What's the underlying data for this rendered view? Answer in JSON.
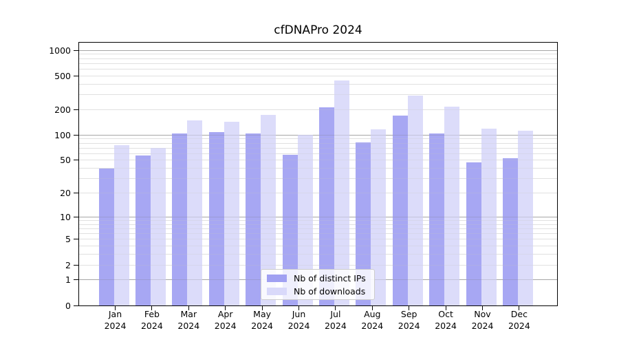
{
  "title": "cfDNAPro 2024",
  "chart_data": {
    "type": "bar",
    "title": "cfDNAPro 2024",
    "categories": [
      "Jan 2024",
      "Feb 2024",
      "Mar 2024",
      "Apr 2024",
      "May 2024",
      "Jun 2024",
      "Jul 2024",
      "Aug 2024",
      "Sep 2024",
      "Oct 2024",
      "Nov 2024",
      "Dec 2024"
    ],
    "series": [
      {
        "name": "Nb of distinct IPs",
        "color": "#a0a0f2",
        "values": [
          40,
          57,
          105,
          108,
          105,
          58,
          212,
          82,
          170,
          105,
          47,
          53
        ]
      },
      {
        "name": "Nb of downloads",
        "color": "#d9d9fa",
        "values": [
          76,
          70,
          148,
          145,
          172,
          100,
          440,
          118,
          295,
          218,
          119,
          112
        ]
      }
    ],
    "xlabel": "",
    "ylabel": "",
    "yscale": "log1p",
    "yticks": [
      0,
      1,
      2,
      5,
      10,
      20,
      50,
      100,
      200,
      500,
      1000
    ],
    "ylim": [
      0,
      1230
    ],
    "grid": true,
    "major_gridlines": [
      1,
      10,
      100,
      1000
    ],
    "legend_position": "lower center",
    "colors": {
      "major_grid": "#b0b0b0",
      "minor_grid": "#e8e8e8",
      "axis": "#000000",
      "legend_border": "#cccccc"
    }
  },
  "legend": {
    "items": [
      {
        "label": "Nb of distinct IPs"
      },
      {
        "label": "Nb of downloads"
      }
    ]
  }
}
